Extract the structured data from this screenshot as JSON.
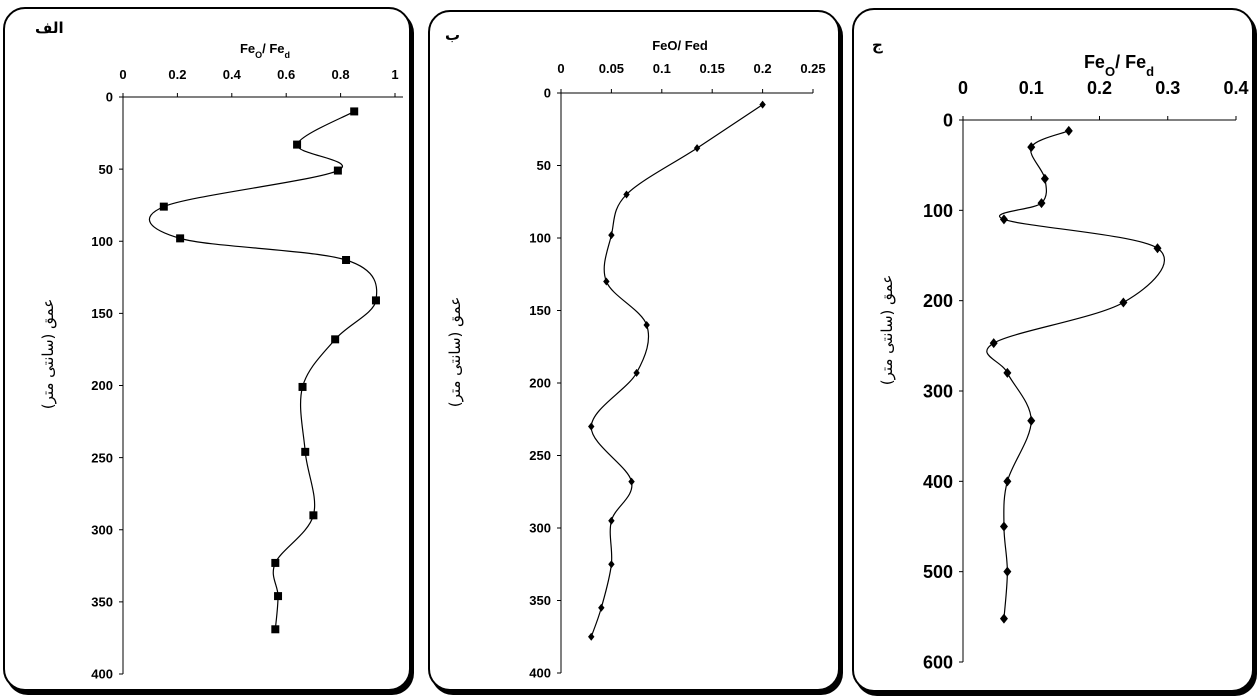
{
  "chart_data": [
    {
      "type": "line",
      "panel_label": "الف",
      "title": "Feo/ Fed",
      "title_parts": [
        "Fe",
        "O",
        "/ Fe",
        "d"
      ],
      "ylabel": "عمق (سانتی متر)",
      "xlim": [
        0,
        1
      ],
      "ylim": [
        0,
        400
      ],
      "y_inverted": true,
      "x_axis_position": "top",
      "xticks": [
        "0",
        "0.2",
        "0.4",
        "0.6",
        "0.8",
        "1"
      ],
      "yticks": [
        "0",
        "50",
        "100",
        "150",
        "200",
        "250",
        "300",
        "350",
        "400"
      ],
      "marker": "square",
      "series": [
        {
          "x": [
            0.85,
            0.64,
            0.79,
            0.15,
            0.21,
            0.82,
            0.93,
            0.78,
            0.66,
            0.67,
            0.7,
            0.56,
            0.57,
            0.56
          ],
          "y": [
            10,
            33,
            51,
            76,
            98,
            113,
            141,
            168,
            201,
            246,
            290,
            323,
            346,
            369
          ]
        }
      ]
    },
    {
      "type": "line",
      "panel_label": "ب",
      "title": "FeO/ Fed",
      "ylabel": "عمق (سانتی متر)",
      "xlim": [
        0,
        0.25
      ],
      "ylim": [
        0,
        400
      ],
      "y_inverted": true,
      "x_axis_position": "top",
      "xticks": [
        "0",
        "0.05",
        "0.1",
        "0.15",
        "0.2",
        "0.25"
      ],
      "yticks": [
        "0",
        "50",
        "100",
        "150",
        "200",
        "250",
        "300",
        "350",
        "400"
      ],
      "marker": "diamond",
      "series": [
        {
          "x": [
            0.2,
            0.135,
            0.065,
            0.05,
            0.045,
            0.085,
            0.075,
            0.03,
            0.07,
            0.05,
            0.05,
            0.04,
            0.03
          ],
          "y": [
            8,
            38,
            70,
            98,
            130,
            160,
            193,
            230,
            268,
            295,
            325,
            355,
            375
          ]
        }
      ]
    },
    {
      "type": "line",
      "panel_label": "ج",
      "title": "Feo/ Fed",
      "title_parts": [
        "Fe",
        "O",
        "/ Fe",
        "d"
      ],
      "ylabel": "عمق (سانتی متر)",
      "xlim": [
        0,
        0.4
      ],
      "ylim": [
        0,
        600
      ],
      "y_inverted": true,
      "x_axis_position": "top",
      "xticks": [
        "0",
        "0.1",
        "0.2",
        "0.3",
        "0.4"
      ],
      "yticks": [
        "0",
        "100",
        "200",
        "300",
        "400",
        "500",
        "600"
      ],
      "marker": "diamond",
      "series": [
        {
          "x": [
            0.155,
            0.1,
            0.12,
            0.115,
            0.06,
            0.285,
            0.235,
            0.045,
            0.065,
            0.1,
            0.065,
            0.06,
            0.065,
            0.06
          ],
          "y": [
            12,
            30,
            65,
            92,
            110,
            142,
            202,
            247,
            280,
            333,
            400,
            450,
            500,
            552
          ]
        }
      ]
    }
  ]
}
